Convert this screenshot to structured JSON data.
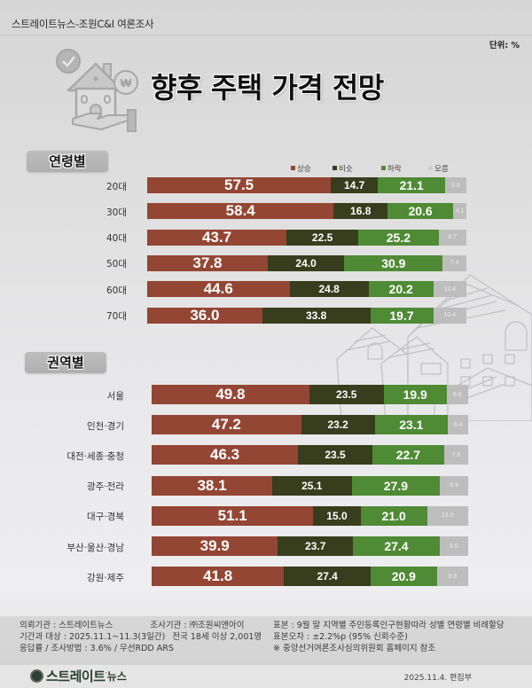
{
  "header": {
    "brand": "스트레이트뉴스-조원C&I 여론조사",
    "unit": "단위: %",
    "title_part1": "향후",
    "title_part2": "주택 가격 전망"
  },
  "legend": [
    {
      "label": "상승",
      "color": "#944634"
    },
    {
      "label": "비슷",
      "color": "#383d1e"
    },
    {
      "label": "하락",
      "color": "#4f8a34"
    },
    {
      "label": "모름",
      "color": "#bdbdbd"
    }
  ],
  "sections": {
    "age": {
      "title": "연령별"
    },
    "region": {
      "title": "권역별"
    }
  },
  "chart_data": [
    {
      "type": "bar",
      "stacked": true,
      "orientation": "horizontal",
      "title": "향후 주택 가격 전망 - 연령별",
      "unit": "%",
      "categories": [
        "20대",
        "30대",
        "40대",
        "50대",
        "60대",
        "70대"
      ],
      "series": [
        {
          "name": "상승",
          "values": [
            57.5,
            58.4,
            43.7,
            37.8,
            44.6,
            36.0
          ]
        },
        {
          "name": "비슷",
          "values": [
            14.7,
            16.8,
            22.5,
            24.0,
            24.8,
            33.8
          ]
        },
        {
          "name": "하락",
          "values": [
            21.1,
            20.6,
            25.2,
            30.9,
            20.2,
            19.7
          ]
        },
        {
          "name": "모름",
          "values": [
            6.6,
            4.1,
            8.7,
            7.4,
            10.4,
            10.4
          ]
        }
      ],
      "legend_position": "top-right",
      "grid": false
    },
    {
      "type": "bar",
      "stacked": true,
      "orientation": "horizontal",
      "title": "향후 주택 가격 전망 - 권역별",
      "unit": "%",
      "categories": [
        "서울",
        "인천·경기",
        "대전·세종·충청",
        "광주·전라",
        "대구·경북",
        "부산·울산·경남",
        "강원·제주"
      ],
      "series": [
        {
          "name": "상승",
          "values": [
            49.8,
            47.2,
            46.3,
            38.1,
            51.1,
            39.9,
            41.8
          ]
        },
        {
          "name": "비슷",
          "values": [
            23.5,
            23.2,
            23.5,
            25.1,
            15.0,
            23.7,
            27.4
          ]
        },
        {
          "name": "하락",
          "values": [
            19.9,
            23.1,
            22.7,
            27.9,
            21.0,
            27.4,
            20.9
          ]
        },
        {
          "name": "모름",
          "values": [
            6.8,
            6.4,
            7.6,
            8.9,
            13.0,
            9.0,
            9.9
          ]
        }
      ],
      "grid": false
    }
  ],
  "footer": {
    "client": "의뢰기관 : 스트레이트뉴스",
    "org": "조사기관 : ㈜조원씨앤아이",
    "period": "기간과 대상 : 2025.11.1~11.3(3일간)",
    "target": "전국 18세 이상  2,001명",
    "method": "응답률 / 조사방법 : 3.6% / 무선RDD ARS",
    "sample": "표본 : 9월 말 지역별 주민등록인구현황따라 성별 연령별 비례할당",
    "error": "표본오차 : ±2.2%p (95% 신뢰수준)",
    "note": "※ 중앙선거여론조사심의위원회 홈페이지 참조",
    "logo_main": "스트레이트",
    "logo_sub": "뉴스",
    "date": "2025.11.4. 편집부"
  }
}
